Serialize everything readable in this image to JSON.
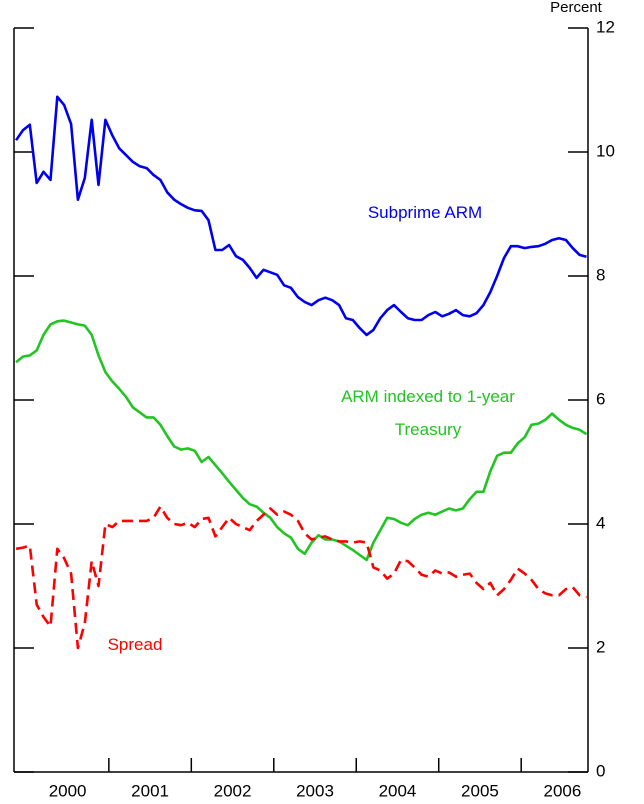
{
  "chart_data": {
    "type": "line",
    "y_axis_label": "Percent",
    "x": [
      1999.875,
      1999.958,
      2000.042,
      2000.125,
      2000.208,
      2000.292,
      2000.375,
      2000.458,
      2000.542,
      2000.625,
      2000.708,
      2000.792,
      2000.875,
      2000.958,
      2001.042,
      2001.125,
      2001.208,
      2001.292,
      2001.375,
      2001.458,
      2001.542,
      2001.625,
      2001.708,
      2001.792,
      2001.875,
      2001.958,
      2002.042,
      2002.125,
      2002.208,
      2002.292,
      2002.375,
      2002.458,
      2002.542,
      2002.625,
      2002.708,
      2002.792,
      2002.875,
      2002.958,
      2003.042,
      2003.125,
      2003.208,
      2003.292,
      2003.375,
      2003.458,
      2003.542,
      2003.625,
      2003.708,
      2003.792,
      2003.875,
      2003.958,
      2004.042,
      2004.125,
      2004.208,
      2004.292,
      2004.375,
      2004.458,
      2004.542,
      2004.625,
      2004.708,
      2004.792,
      2004.875,
      2004.958,
      2005.042,
      2005.125,
      2005.208,
      2005.292,
      2005.375,
      2005.458,
      2005.542,
      2005.625,
      2005.708,
      2005.792,
      2005.875,
      2005.958,
      2006.042,
      2006.125,
      2006.208,
      2006.292,
      2006.375,
      2006.458,
      2006.542,
      2006.625,
      2006.708,
      2006.792
    ],
    "series": [
      {
        "name": "Subprime ARM",
        "color": "#0000ee",
        "linestyle": "solid",
        "values": [
          10.19,
          10.35,
          10.44,
          9.5,
          9.68,
          9.55,
          10.89,
          10.76,
          10.45,
          9.23,
          9.58,
          10.52,
          9.47,
          10.52,
          10.27,
          10.06,
          9.95,
          9.84,
          9.77,
          9.74,
          9.63,
          9.55,
          9.35,
          9.23,
          9.16,
          9.1,
          9.06,
          9.05,
          8.9,
          8.42,
          8.42,
          8.5,
          8.32,
          8.26,
          8.13,
          7.97,
          8.1,
          8.06,
          8.02,
          7.85,
          7.81,
          7.66,
          7.58,
          7.53,
          7.61,
          7.65,
          7.61,
          7.53,
          7.32,
          7.29,
          7.16,
          7.05,
          7.13,
          7.32,
          7.45,
          7.53,
          7.42,
          7.32,
          7.29,
          7.29,
          7.37,
          7.42,
          7.35,
          7.39,
          7.45,
          7.37,
          7.35,
          7.4,
          7.53,
          7.74,
          8.0,
          8.29,
          8.48,
          8.48,
          8.45,
          8.47,
          8.48,
          8.52,
          8.58,
          8.61,
          8.58,
          8.45,
          8.34,
          8.31
        ]
      },
      {
        "name": "ARM indexed to 1-year Treasury",
        "color": "#22c422",
        "linestyle": "solid",
        "values": [
          6.61,
          6.7,
          6.72,
          6.8,
          7.05,
          7.22,
          7.27,
          7.28,
          7.25,
          7.22,
          7.2,
          7.05,
          6.72,
          6.45,
          6.3,
          6.18,
          6.05,
          5.88,
          5.8,
          5.72,
          5.72,
          5.6,
          5.42,
          5.25,
          5.2,
          5.22,
          5.18,
          5.0,
          5.08,
          4.95,
          4.82,
          4.68,
          4.55,
          4.42,
          4.32,
          4.28,
          4.18,
          4.1,
          3.95,
          3.85,
          3.78,
          3.6,
          3.52,
          3.7,
          3.82,
          3.75,
          3.75,
          3.72,
          3.65,
          3.58,
          3.5,
          3.42,
          3.7,
          3.9,
          4.1,
          4.08,
          4.02,
          3.98,
          4.08,
          4.15,
          4.18,
          4.15,
          4.2,
          4.25,
          4.22,
          4.25,
          4.4,
          4.52,
          4.52,
          4.85,
          5.1,
          5.15,
          5.15,
          5.3,
          5.4,
          5.6,
          5.62,
          5.68,
          5.78,
          5.68,
          5.6,
          5.55,
          5.52,
          5.45
        ]
      },
      {
        "name": "Spread",
        "color": "#ff0000",
        "linestyle": "dashed",
        "values": [
          3.6,
          3.62,
          3.65,
          2.7,
          2.5,
          2.35,
          3.6,
          3.45,
          3.2,
          2.0,
          2.4,
          3.4,
          3.0,
          4.0,
          3.95,
          4.05,
          4.05,
          4.05,
          4.05,
          4.05,
          4.1,
          4.28,
          4.1,
          4.0,
          3.98,
          4.02,
          3.95,
          4.08,
          4.1,
          3.8,
          3.95,
          4.1,
          4.0,
          3.95,
          3.9,
          4.05,
          4.15,
          4.25,
          4.15,
          4.2,
          4.15,
          4.05,
          3.85,
          3.75,
          3.78,
          3.8,
          3.75,
          3.72,
          3.72,
          3.7,
          3.72,
          3.7,
          3.3,
          3.25,
          3.12,
          3.2,
          3.42,
          3.4,
          3.3,
          3.18,
          3.15,
          3.25,
          3.2,
          3.22,
          3.15,
          3.18,
          3.2,
          3.05,
          2.95,
          3.05,
          2.85,
          2.95,
          3.1,
          3.28,
          3.2,
          3.1,
          2.95,
          2.88,
          2.85,
          2.85,
          2.95,
          2.98,
          2.85,
          2.82
        ]
      }
    ],
    "xlim": [
      1999.85,
      2006.81
    ],
    "xticks": [
      {
        "value": 2000.5,
        "label": "2000"
      },
      {
        "value": 2001.5,
        "label": "2001"
      },
      {
        "value": 2002.5,
        "label": "2002"
      },
      {
        "value": 2003.5,
        "label": "2003"
      },
      {
        "value": 2004.5,
        "label": "2004"
      },
      {
        "value": 2005.5,
        "label": "2005"
      },
      {
        "value": 2006.5,
        "label": "2006"
      }
    ],
    "ylim": [
      0,
      12
    ],
    "yticks": [
      0,
      2,
      4,
      6,
      8,
      10,
      12
    ],
    "grid": false
  }
}
